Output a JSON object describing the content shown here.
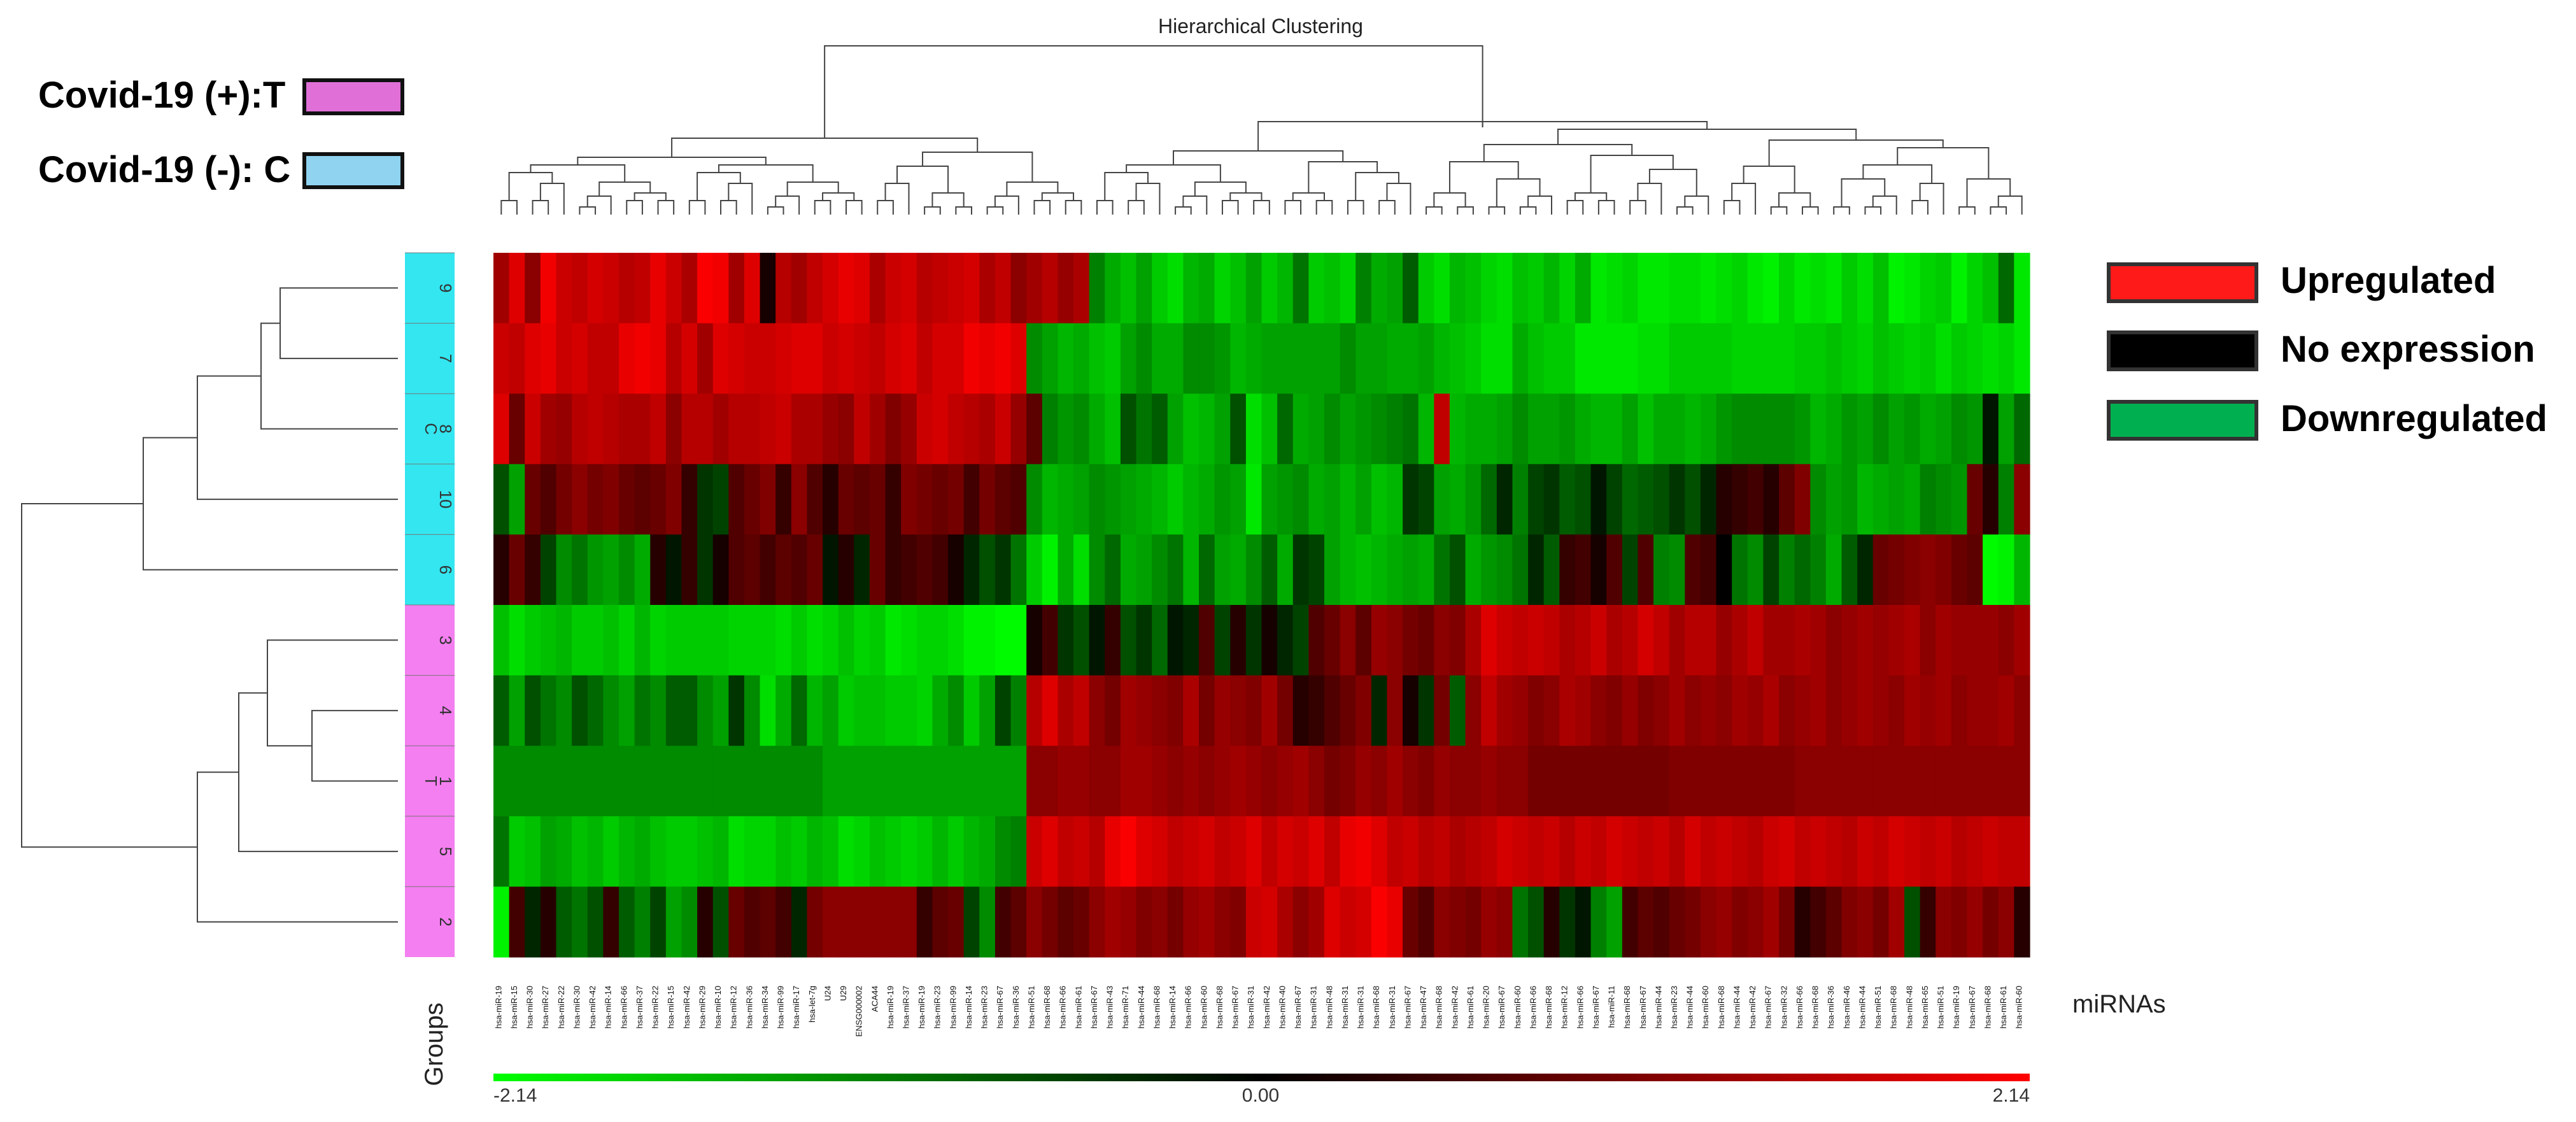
{
  "chart_data": {
    "type": "heatmap",
    "title": "Hierarchical Clustering",
    "xlabel": "miRNAs",
    "ylabel": "Groups",
    "rows": [
      "9",
      "7",
      "8",
      "10",
      "6",
      "3",
      "4",
      "1",
      "5",
      "2"
    ],
    "row_groups": [
      "C",
      "C",
      "C",
      "C",
      "C",
      "T",
      "T",
      "T",
      "T",
      "T"
    ],
    "group_labels": [
      "C",
      "T"
    ],
    "group_colors": {
      "C": "#33e6f0",
      "T": "#f47ff0"
    },
    "group_legend": [
      {
        "label": "Covid-19 (+):T",
        "color": "#e070d8"
      },
      {
        "label": "Covid-19 (-): C",
        "color": "#8fd3f0"
      }
    ],
    "expression_legend": [
      {
        "label": "Upregulated",
        "color": "#ff1a1a"
      },
      {
        "label": "No expression",
        "color": "#000000"
      },
      {
        "label": "Downregulated",
        "color": "#00b050"
      }
    ],
    "color_scale": {
      "min": -2.14,
      "mid": 0.0,
      "max": 2.14,
      "labels": [
        "-2.14",
        "0.00",
        "2.14"
      ],
      "low_color": "#00ff00",
      "mid_color": "#000000",
      "high_color": "#ff0000"
    },
    "block_columns": 38,
    "column_labels": [
      "hsa-miR-19",
      "hsa-miR-15",
      "hsa-miR-30",
      "hsa-miR-27",
      "hsa-miR-22",
      "hsa-miR-30",
      "hsa-miR-42",
      "hsa-miR-14",
      "hsa-miR-66",
      "hsa-miR-37",
      "hsa-miR-22",
      "hsa-miR-15",
      "hsa-miR-42",
      "hsa-miR-29",
      "hsa-miR-10",
      "hsa-miR-12",
      "hsa-miR-36",
      "hsa-miR-34",
      "hsa-miR-99",
      "hsa-miR-17",
      "hsa-let-7g",
      "U24",
      "U29",
      "ENSG000002",
      "ACA44",
      "hsa-miR-19",
      "hsa-miR-37",
      "hsa-miR-19",
      "hsa-miR-23",
      "hsa-miR-99",
      "hsa-miR-14",
      "hsa-miR-23",
      "hsa-miR-67",
      "hsa-miR-36",
      "hsa-miR-51",
      "hsa-miR-68",
      "hsa-miR-66",
      "hsa-miR-61",
      "hsa-miR-67",
      "hsa-miR-43",
      "hsa-miR-71",
      "hsa-miR-44",
      "hsa-miR-68",
      "hsa-miR-14",
      "hsa-miR-66",
      "hsa-miR-60",
      "hsa-miR-68",
      "hsa-miR-67",
      "hsa-miR-31",
      "hsa-miR-42",
      "hsa-miR-40",
      "hsa-miR-67",
      "hsa-miR-31",
      "hsa-miR-48",
      "hsa-miR-31",
      "hsa-miR-31",
      "hsa-miR-68",
      "hsa-miR-31",
      "hsa-miR-67",
      "hsa-miR-47",
      "hsa-miR-68",
      "hsa-miR-42",
      "hsa-miR-61",
      "hsa-miR-20",
      "hsa-miR-67",
      "hsa-miR-60",
      "hsa-miR-66",
      "hsa-miR-68",
      "hsa-miR-12",
      "hsa-miR-66",
      "hsa-miR-67",
      "hsa-miR-11",
      "hsa-miR-68",
      "hsa-miR-67",
      "hsa-miR-44",
      "hsa-miR-23",
      "hsa-miR-44",
      "hsa-miR-60",
      "hsa-miR-68",
      "hsa-miR-44",
      "hsa-miR-42",
      "hsa-miR-67",
      "hsa-miR-32",
      "hsa-miR-66",
      "hsa-miR-68",
      "hsa-miR-36",
      "hsa-miR-46",
      "hsa-miR-44",
      "hsa-miR-51",
      "hsa-miR-68",
      "hsa-miR-48",
      "hsa-miR-65",
      "hsa-miR-51",
      "hsa-miR-19",
      "hsa-miR-67",
      "hsa-miR-68",
      "hsa-miR-61",
      "hsa-miR-60"
    ],
    "values": [
      [
        1.2,
        1.8,
        1.0,
        2.0,
        1.6,
        1.5,
        1.7,
        1.6,
        1.4,
        1.5,
        1.9,
        1.6,
        1.3,
        2.1,
        2.0,
        1.2,
        1.8,
        0.1,
        1.4,
        1.2,
        1.5,
        1.7,
        1.9,
        1.8,
        1.3,
        1.6,
        1.7,
        1.4,
        1.5,
        1.6,
        1.7,
        1.3,
        1.5,
        1.0,
        1.2,
        1.4,
        1.1,
        1.3,
        -0.9,
        -1.3,
        -1.5,
        -1.2,
        -1.6,
        -1.8,
        -1.4,
        -1.3,
        -1.7,
        -1.5,
        -1.2,
        -1.6,
        -1.4,
        -0.8,
        -1.6,
        -1.5,
        -1.7,
        -0.9,
        -1.3,
        -1.2,
        -0.6,
        -1.6,
        -1.8,
        -1.4,
        -1.5,
        -1.7,
        -1.8,
        -1.5,
        -1.6,
        -1.4,
        -1.7,
        -1.3,
        -1.9,
        -1.8,
        -1.7,
        -1.9,
        -1.9,
        -1.8,
        -1.8,
        -1.9,
        -1.8,
        -1.7,
        -1.9,
        -2.0,
        -1.7,
        -1.9,
        -1.8,
        -1.9,
        -1.6,
        -1.8,
        -1.5,
        -2.0,
        -1.9,
        -1.7,
        -1.6,
        -2.0,
        -1.7,
        -1.5,
        -0.7,
        -1.9
      ],
      [
        1.6,
        1.5,
        1.8,
        1.9,
        1.6,
        1.7,
        1.5,
        1.5,
        1.9,
        2.0,
        1.9,
        1.4,
        1.7,
        1.2,
        1.8,
        1.7,
        1.6,
        1.6,
        1.7,
        1.8,
        1.8,
        1.6,
        1.7,
        1.6,
        1.5,
        1.7,
        1.8,
        1.5,
        1.7,
        1.7,
        2.0,
        1.9,
        2.0,
        1.8,
        -1.0,
        -1.2,
        -1.4,
        -1.3,
        -1.5,
        -1.6,
        -1.2,
        -1.0,
        -1.3,
        -1.3,
        -1.0,
        -1.0,
        -1.1,
        -1.4,
        -1.3,
        -1.2,
        -1.2,
        -1.2,
        -1.2,
        -1.2,
        -1.0,
        -1.2,
        -1.2,
        -1.3,
        -1.3,
        -1.2,
        -1.4,
        -1.5,
        -1.6,
        -1.8,
        -1.8,
        -1.3,
        -1.5,
        -1.6,
        -1.6,
        -1.9,
        -1.9,
        -1.9,
        -1.9,
        -1.8,
        -1.8,
        -1.6,
        -1.6,
        -1.6,
        -1.6,
        -1.7,
        -1.7,
        -1.7,
        -1.7,
        -1.6,
        -1.6,
        -1.5,
        -1.6,
        -1.7,
        -1.5,
        -1.6,
        -1.7,
        -1.6,
        -1.8,
        -1.6,
        -1.7,
        -1.8,
        -1.7,
        -1.9
      ],
      [
        1.8,
        0.7,
        1.6,
        1.2,
        1.1,
        1.4,
        1.5,
        1.4,
        1.3,
        1.3,
        1.5,
        1.0,
        1.4,
        1.4,
        1.2,
        1.4,
        1.4,
        1.5,
        1.6,
        1.3,
        1.3,
        1.1,
        1.0,
        1.5,
        1.2,
        0.9,
        1.1,
        1.6,
        1.7,
        1.5,
        1.4,
        1.3,
        1.6,
        1.1,
        0.6,
        -0.9,
        -1.1,
        -1.0,
        -1.3,
        -1.5,
        -0.5,
        -0.8,
        -0.6,
        -1.2,
        -1.5,
        -1.4,
        -1.2,
        -0.5,
        -1.8,
        -1.5,
        -0.7,
        -1.3,
        -1.2,
        -1.0,
        -1.2,
        -1.1,
        -1.0,
        -0.9,
        -0.8,
        -1.4,
        1.5,
        -1.4,
        -1.3,
        -1.3,
        -1.2,
        -1.0,
        -1.2,
        -1.2,
        -1.1,
        -1.3,
        -1.4,
        -1.4,
        -1.2,
        -1.5,
        -1.3,
        -1.3,
        -1.4,
        -1.3,
        -1.1,
        -1.0,
        -1.0,
        -1.0,
        -1.0,
        -1.1,
        -1.4,
        -1.3,
        -1.1,
        -1.2,
        -1.0,
        -1.2,
        -1.1,
        -1.3,
        -1.2,
        -1.0,
        -1.1,
        -0.1,
        -1.2,
        -0.7
      ],
      [
        -0.5,
        -1.2,
        0.7,
        0.5,
        0.8,
        1.0,
        0.8,
        0.9,
        0.7,
        0.6,
        0.7,
        0.9,
        0.3,
        -0.3,
        -0.4,
        0.5,
        0.7,
        0.9,
        0.3,
        1.0,
        0.5,
        0.2,
        0.7,
        0.6,
        0.7,
        0.3,
        0.9,
        0.8,
        0.7,
        0.8,
        0.4,
        0.8,
        0.6,
        0.5,
        -1.0,
        -1.4,
        -1.3,
        -1.2,
        -1.0,
        -1.1,
        -1.2,
        -1.3,
        -1.4,
        -1.6,
        -1.4,
        -1.3,
        -1.1,
        -1.2,
        -1.9,
        -1.2,
        -1.1,
        -1.0,
        -1.3,
        -1.2,
        -1.4,
        -1.2,
        -1.5,
        -1.4,
        -0.3,
        -0.4,
        -1.2,
        -1.3,
        -1.1,
        -0.7,
        -0.2,
        -0.9,
        -0.4,
        -0.3,
        -0.6,
        -0.5,
        -0.1,
        -0.4,
        -0.7,
        -0.6,
        -0.5,
        -0.3,
        -0.5,
        -0.2,
        0.2,
        0.3,
        0.4,
        0.2,
        0.6,
        0.9,
        -1.0,
        -1.2,
        -1.1,
        -1.4,
        -1.3,
        -1.2,
        -1.3,
        -0.9,
        -1.0,
        -1.1,
        0.7,
        0.2,
        -0.9,
        1.0
      ],
      [
        0.2,
        0.7,
        0.3,
        -0.4,
        -1.0,
        -0.8,
        -1.1,
        -1.2,
        -1.0,
        -1.3,
        0.2,
        -0.1,
        0.3,
        -0.3,
        0.1,
        0.5,
        0.6,
        0.4,
        0.6,
        0.5,
        0.7,
        -0.1,
        0.2,
        -0.2,
        0.7,
        0.3,
        0.4,
        0.5,
        0.4,
        0.1,
        -0.2,
        -0.5,
        -0.3,
        -0.8,
        -1.6,
        -2.0,
        -1.3,
        -1.8,
        -1.0,
        -0.7,
        -1.3,
        -1.2,
        -1.0,
        -0.8,
        -1.4,
        -0.7,
        -1.2,
        -1.3,
        -1.0,
        -0.6,
        -1.3,
        -0.3,
        -0.4,
        -1.2,
        -1.4,
        -1.5,
        -1.4,
        -1.3,
        -1.2,
        -1.3,
        -0.8,
        -0.5,
        -1.3,
        -1.1,
        -1.0,
        -0.8,
        -0.2,
        -0.6,
        0.3,
        0.4,
        0.1,
        0.5,
        -0.4,
        0.5,
        -0.9,
        -1.0,
        0.5,
        0.4,
        0.0,
        -0.8,
        -1.0,
        -0.4,
        -0.9,
        -0.7,
        -0.9,
        -1.3,
        -0.6,
        -0.2,
        0.7,
        0.8,
        0.9,
        1.0,
        0.9,
        0.7,
        0.6,
        -2.1,
        -2.0,
        -1.4
      ],
      [
        -1.5,
        -1.8,
        -1.6,
        -1.5,
        -1.4,
        -1.6,
        -1.6,
        -1.5,
        -1.7,
        -1.4,
        -1.7,
        -1.6,
        -1.6,
        -1.6,
        -1.6,
        -1.7,
        -1.7,
        -1.7,
        -1.8,
        -1.6,
        -1.8,
        -1.7,
        -1.5,
        -1.7,
        -1.6,
        -1.9,
        -1.8,
        -1.7,
        -1.7,
        -1.8,
        -2.0,
        -2.0,
        -2.1,
        -2.1,
        0.1,
        0.4,
        -0.3,
        -0.5,
        -0.1,
        0.3,
        -0.5,
        -0.3,
        -0.7,
        -0.1,
        -0.2,
        0.5,
        -0.4,
        0.2,
        -0.3,
        0.1,
        -0.2,
        -0.4,
        0.5,
        0.7,
        1.0,
        0.6,
        1.1,
        1.0,
        0.8,
        0.7,
        1.0,
        0.9,
        1.3,
        1.8,
        1.6,
        1.5,
        1.6,
        1.5,
        1.3,
        1.4,
        1.6,
        1.3,
        1.4,
        1.7,
        1.5,
        1.2,
        1.4,
        1.4,
        1.1,
        1.3,
        1.5,
        1.2,
        1.2,
        1.3,
        1.2,
        1.0,
        1.1,
        1.2,
        1.1,
        1.2,
        1.3,
        1.0,
        1.2,
        1.1,
        1.1,
        1.1,
        1.0,
        1.2
      ],
      [
        -0.6,
        -1.2,
        -0.5,
        -0.8,
        -1.0,
        -0.5,
        -0.7,
        -1.0,
        -1.2,
        -0.8,
        -1.0,
        -0.6,
        -0.6,
        -1.0,
        -1.2,
        -0.3,
        -1.0,
        -1.8,
        -1.3,
        -0.7,
        -1.4,
        -1.2,
        -1.6,
        -1.5,
        -1.5,
        -1.6,
        -1.6,
        -1.7,
        -1.3,
        -1.0,
        -1.6,
        -1.2,
        -0.4,
        -0.9,
        1.4,
        1.8,
        1.3,
        1.5,
        1.0,
        0.8,
        1.2,
        1.1,
        1.0,
        0.9,
        1.3,
        0.8,
        1.1,
        1.0,
        0.9,
        1.2,
        0.8,
        0.2,
        0.3,
        0.5,
        0.7,
        0.9,
        -0.2,
        1.0,
        0.1,
        -0.3,
        0.8,
        -0.6,
        1.0,
        1.5,
        1.2,
        1.1,
        0.9,
        1.0,
        1.3,
        1.2,
        1.0,
        0.9,
        1.1,
        0.9,
        1.0,
        1.2,
        1.0,
        1.1,
        1.0,
        1.2,
        1.1,
        1.3,
        1.0,
        1.1,
        1.2,
        1.0,
        1.1,
        1.2,
        1.1,
        1.0,
        1.2,
        1.1,
        1.2,
        1.0,
        1.1,
        1.1,
        1.2,
        1.0
      ],
      [
        -1.0,
        -1.0,
        -1.0,
        -1.0,
        -1.0,
        -1.0,
        -1.0,
        -1.0,
        -1.0,
        -1.0,
        -1.0,
        -1.0,
        -1.0,
        -1.0,
        -1.0,
        -1.0,
        -1.0,
        -1.0,
        -1.0,
        -1.0,
        -1.0,
        -1.2,
        -1.2,
        -1.2,
        -1.2,
        -1.2,
        -1.2,
        -1.2,
        -1.2,
        -1.2,
        -1.2,
        -1.2,
        -1.2,
        -1.2,
        1.0,
        1.0,
        1.1,
        1.1,
        1.0,
        1.0,
        1.2,
        1.2,
        1.1,
        1.0,
        1.1,
        1.0,
        1.1,
        1.2,
        1.1,
        1.0,
        1.1,
        1.2,
        1.0,
        0.8,
        0.9,
        1.1,
        1.0,
        1.2,
        1.0,
        0.9,
        1.1,
        1.0,
        1.0,
        1.1,
        1.0,
        1.0,
        0.8,
        0.8,
        0.8,
        0.8,
        0.8,
        0.8,
        0.8,
        0.8,
        0.8,
        0.9,
        0.9,
        0.9,
        0.9,
        0.9,
        0.9,
        0.9,
        0.9,
        1.0,
        1.0,
        1.0,
        1.0,
        1.0,
        1.0,
        1.0,
        1.0,
        1.0,
        1.0,
        1.0,
        1.0,
        1.0,
        1.0,
        1.0
      ],
      [
        -0.8,
        -1.6,
        -1.5,
        -1.2,
        -1.3,
        -1.5,
        -1.4,
        -1.6,
        -1.4,
        -1.3,
        -1.5,
        -1.6,
        -1.6,
        -1.5,
        -1.4,
        -1.8,
        -1.7,
        -1.7,
        -1.5,
        -1.6,
        -1.4,
        -1.5,
        -1.8,
        -1.7,
        -1.5,
        -1.6,
        -1.7,
        -1.6,
        -1.4,
        -1.6,
        -1.4,
        -1.3,
        -1.0,
        -0.9,
        1.6,
        1.8,
        1.5,
        1.6,
        1.4,
        1.9,
        2.1,
        1.8,
        1.7,
        1.5,
        1.6,
        1.7,
        1.5,
        1.6,
        1.8,
        1.5,
        1.7,
        1.6,
        1.8,
        1.5,
        1.9,
        2.0,
        1.8,
        1.5,
        1.6,
        1.4,
        1.5,
        1.3,
        1.4,
        1.5,
        1.7,
        1.6,
        1.5,
        1.6,
        1.4,
        1.6,
        1.5,
        1.7,
        1.6,
        1.5,
        1.6,
        1.4,
        1.7,
        1.5,
        1.6,
        1.5,
        1.4,
        1.6,
        1.7,
        1.5,
        1.6,
        1.5,
        1.4,
        1.6,
        1.5,
        1.7,
        1.6,
        1.5,
        1.6,
        1.4,
        1.5,
        1.6,
        1.5,
        1.5
      ],
      [
        -2.0,
        0.4,
        -0.2,
        0.2,
        -0.6,
        -0.8,
        -0.5,
        0.3,
        -0.6,
        -0.9,
        -0.4,
        -1.2,
        -1.0,
        0.2,
        -0.5,
        0.7,
        0.5,
        0.6,
        0.4,
        -0.2,
        0.8,
        1.0,
        1.0,
        1.0,
        1.0,
        1.0,
        1.0,
        0.3,
        0.6,
        0.7,
        -0.4,
        -1.0,
        0.4,
        0.6,
        1.0,
        0.8,
        0.6,
        0.7,
        1.0,
        1.2,
        1.1,
        0.9,
        1.0,
        0.8,
        1.1,
        1.2,
        1.0,
        0.9,
        1.6,
        1.7,
        1.3,
        1.0,
        1.2,
        1.8,
        1.6,
        1.7,
        2.1,
        1.9,
        0.7,
        0.5,
        1.0,
        0.9,
        0.8,
        1.1,
        1.0,
        -0.8,
        -0.5,
        0.2,
        -0.3,
        -0.1,
        -0.9,
        -1.2,
        0.4,
        0.6,
        0.5,
        0.7,
        0.8,
        1.0,
        1.1,
        0.9,
        1.0,
        1.2,
        0.8,
        0.2,
        0.4,
        0.6,
        0.9,
        1.0,
        0.8,
        1.2,
        -0.5,
        0.3,
        1.0,
        0.9,
        1.1,
        0.8,
        1.0,
        0.2
      ]
    ]
  }
}
